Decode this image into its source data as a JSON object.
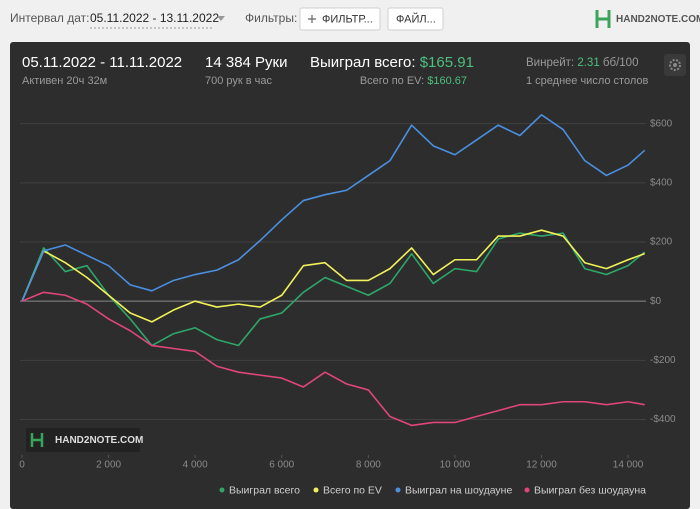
{
  "toolbar": {
    "date_label": "Интервал дат:",
    "date_range": "05.11.2022 - 13.11.2022",
    "filters_label": "Фильтры:",
    "filter_button": "ФИЛЬТР...",
    "file_button": "ФАЙЛ...",
    "logo": "HAND2NOTE.COM"
  },
  "summary": {
    "period": "05.11.2022 - 11.11.2022",
    "active": "Активен 20ч 32м",
    "hands": "14 384 Руки",
    "hands_per_hour": "700 рук в час",
    "won_label": "Выиграл всего:",
    "won_value": "$165.91",
    "ev_label": "Всего по EV:",
    "ev_value": "$160.67",
    "winrate_label": "Винрейт:",
    "winrate_value": "2.31",
    "winrate_unit": "бб/100",
    "tables": "1 среднее число столов"
  },
  "chart_data": {
    "type": "line",
    "watermark": "HAND2NOTE.COM",
    "x": [
      0,
      500,
      1000,
      1500,
      2000,
      2500,
      3000,
      3500,
      4000,
      4500,
      5000,
      5500,
      6000,
      6500,
      7000,
      7500,
      8000,
      8500,
      9000,
      9500,
      10000,
      10500,
      11000,
      11500,
      12000,
      12500,
      13000,
      13500,
      14000,
      14384
    ],
    "series": [
      {
        "name": "Выиграл всего",
        "color": "#2fa66a",
        "values": [
          0,
          180,
          100,
          120,
          20,
          -60,
          -150,
          -110,
          -90,
          -130,
          -150,
          -60,
          -40,
          30,
          80,
          50,
          20,
          60,
          160,
          60,
          110,
          100,
          210,
          230,
          220,
          230,
          110,
          90,
          120,
          165.91
        ]
      },
      {
        "name": "Всего по EV",
        "color": "#f1f15a",
        "values": [
          0,
          170,
          130,
          80,
          20,
          -40,
          -70,
          -30,
          0,
          -20,
          -10,
          -20,
          20,
          120,
          130,
          70,
          70,
          110,
          180,
          90,
          140,
          140,
          220,
          220,
          240,
          220,
          130,
          110,
          140,
          160.67
        ]
      },
      {
        "name": "Выиграл на шоудауне",
        "color": "#4a8fe0",
        "values": [
          0,
          170,
          190,
          155,
          120,
          55,
          35,
          70,
          90,
          105,
          140,
          205,
          275,
          340,
          360,
          375,
          425,
          475,
          595,
          525,
          495,
          545,
          595,
          560,
          630,
          580,
          475,
          425,
          460,
          510
        ]
      },
      {
        "name": "Выиграл без шоудауна",
        "color": "#e0457b",
        "values": [
          0,
          30,
          20,
          -10,
          -60,
          -100,
          -150,
          -160,
          -170,
          -220,
          -240,
          -250,
          -260,
          -290,
          -240,
          -280,
          -300,
          -390,
          -420,
          -410,
          -410,
          -390,
          -370,
          -350,
          -350,
          -340,
          -340,
          -350,
          -340,
          -350
        ]
      }
    ],
    "xlim": [
      0,
      14384
    ],
    "ylim": [
      -520,
      680
    ],
    "xticks": [
      0,
      {
        "value": 2000,
        "label": "2 000"
      },
      {
        "value": 4000,
        "label": "4 000"
      },
      {
        "value": 6000,
        "label": "6 000"
      },
      {
        "value": 8000,
        "label": "8 000"
      },
      {
        "value": 10000,
        "label": "10 000"
      },
      {
        "value": 12000,
        "label": "12 000"
      },
      {
        "value": 14000,
        "label": "14 000"
      }
    ],
    "yticks": [
      {
        "value": 600,
        "label": "$600"
      },
      {
        "value": 400,
        "label": "$400"
      },
      {
        "value": 200,
        "label": "$200"
      },
      {
        "value": 0,
        "label": "$0"
      },
      {
        "value": -200,
        "label": "-$200"
      },
      {
        "value": -400,
        "label": "-$400"
      }
    ],
    "grid": true
  }
}
